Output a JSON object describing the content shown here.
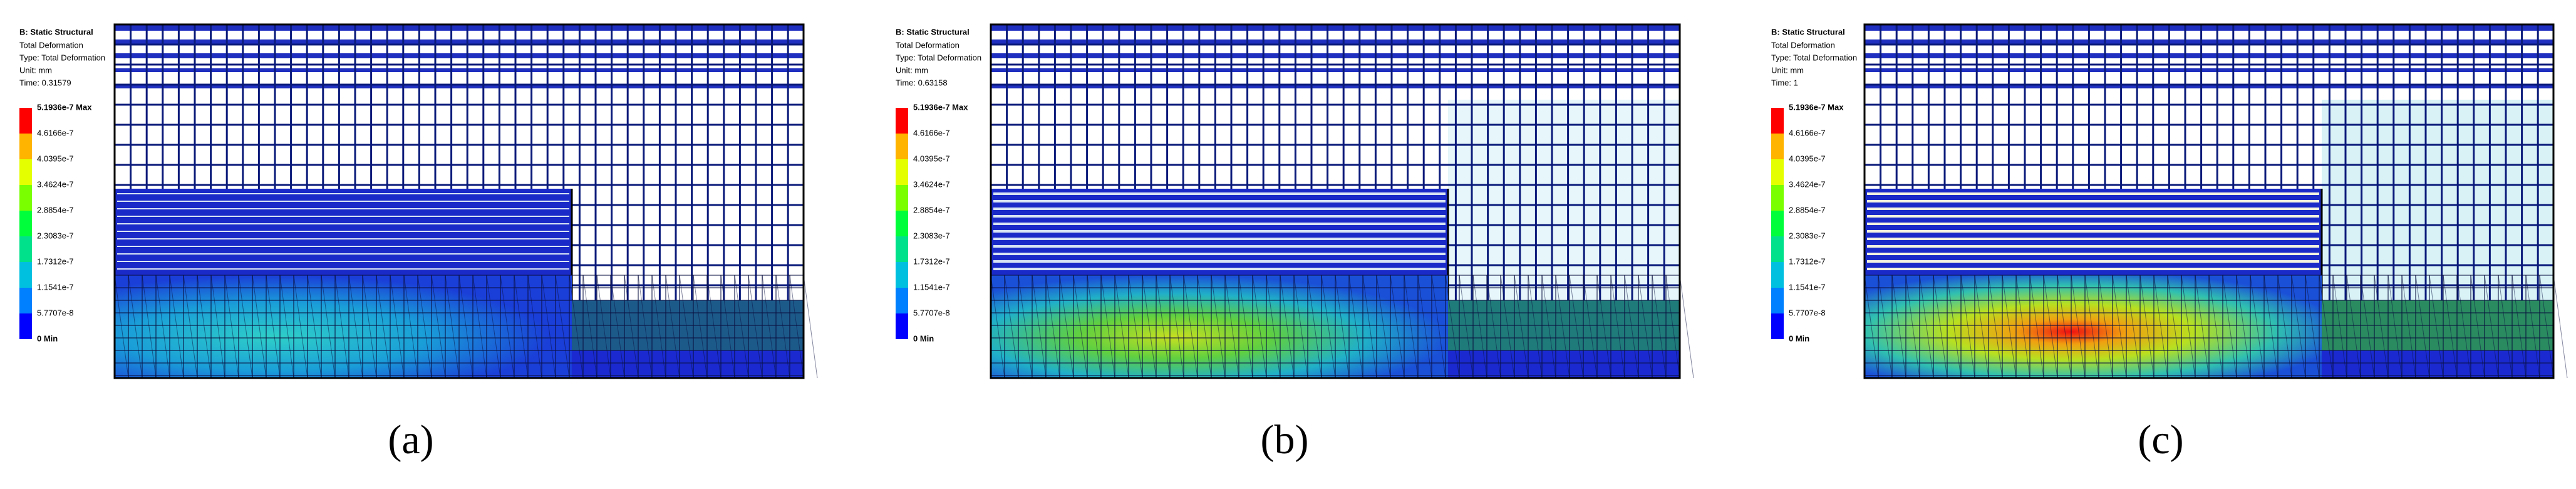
{
  "panels": [
    {
      "legend": {
        "title": "B: Static Structural",
        "lines": [
          "Total Deformation",
          "Type: Total Deformation",
          "Unit: mm",
          "Time: 0.31579"
        ],
        "scale": [
          "5.1936e-7 Max",
          "4.6166e-7",
          "4.0395e-7",
          "3.4624e-7",
          "2.8854e-7",
          "2.3083e-7",
          "1.7312e-7",
          "1.1541e-7",
          "5.7707e-8",
          "0 Min"
        ]
      },
      "caption": "(a)"
    },
    {
      "legend": {
        "title": "B: Static Structural",
        "lines": [
          "Total Deformation",
          "Type: Total Deformation",
          "Unit: mm",
          "Time: 0.63158"
        ],
        "scale": [
          "5.1936e-7 Max",
          "4.6166e-7",
          "4.0395e-7",
          "3.4624e-7",
          "2.8854e-7",
          "2.3083e-7",
          "1.7312e-7",
          "1.1541e-7",
          "5.7707e-8",
          "0 Min"
        ]
      },
      "caption": "(b)"
    },
    {
      "legend": {
        "title": "B: Static Structural",
        "lines": [
          "Total Deformation",
          "Type: Total Deformation",
          "Unit: mm",
          "Time: 1"
        ],
        "scale": [
          "5.1936e-7 Max",
          "4.6166e-7",
          "4.0395e-7",
          "3.4624e-7",
          "2.8854e-7",
          "2.3083e-7",
          "1.7312e-7",
          "1.1541e-7",
          "5.7707e-8",
          "0 Min"
        ]
      },
      "caption": "(c)"
    }
  ]
}
